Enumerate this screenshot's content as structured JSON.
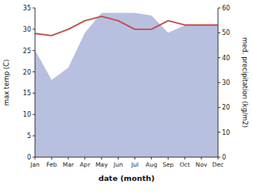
{
  "chart_data": {
    "type": "line",
    "categories": [
      "Jan",
      "Feb",
      "Mar",
      "Apr",
      "May",
      "Jun",
      "Jul",
      "Aug",
      "Sep",
      "Oct",
      "Nov",
      "Dec"
    ],
    "xlabel": "date (month)",
    "ylabel": "max temp (C)",
    "y2label": "med. precipitation (kg/m2)",
    "series": [
      {
        "type": "area",
        "axis": "y2",
        "color": "#b8c0e0",
        "values": [
          43,
          31,
          36,
          50,
          58,
          58,
          58,
          57,
          50,
          53,
          53,
          53
        ]
      },
      {
        "type": "line",
        "color": "#c0504d",
        "values": [
          29.0,
          28.5,
          30.0,
          32.0,
          33.0,
          32.0,
          30.0,
          30.0,
          32.0,
          31.0,
          31.0,
          31.0
        ]
      }
    ],
    "ylim": [
      0,
      35
    ],
    "yticks": [
      0,
      5,
      10,
      15,
      20,
      25,
      30,
      35
    ],
    "y2lim": [
      0,
      60
    ],
    "y2ticks": [
      0,
      10,
      20,
      30,
      40,
      50,
      60
    ]
  }
}
